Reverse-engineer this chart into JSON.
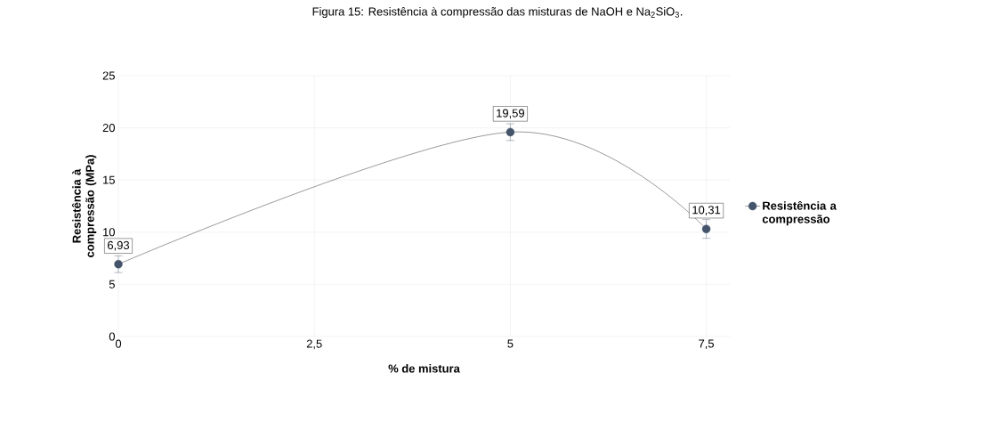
{
  "chart_data": {
    "type": "line",
    "title": "Figura 15: Resistência à compressão das misturas de NaOH e Na$_{2}$SiO$_{3}$.",
    "xlabel": "% de mistura",
    "ylabel": "Resistência à compressão (MPa)",
    "x": [
      0,
      5,
      7.5
    ],
    "series": [
      {
        "name": "Resistência a compressão",
        "color": "#44546a",
        "values": [
          6.93,
          19.59,
          10.31
        ],
        "errors": [
          0.8,
          0.8,
          0.9
        ],
        "value_labels": [
          "6,93",
          "19,59",
          "10,31"
        ]
      }
    ],
    "xlim": [
      0,
      7.8
    ],
    "ylim": [
      0,
      25
    ],
    "xticks": [
      0,
      {
        "value": 2.5,
        "label": "2,5"
      },
      5,
      {
        "value": 7.5,
        "label": "7,5"
      }
    ],
    "yticks": [
      0,
      5,
      10,
      15,
      20,
      25
    ],
    "grid": true,
    "legend": "right",
    "marker": "circle",
    "line_style": "solid"
  }
}
